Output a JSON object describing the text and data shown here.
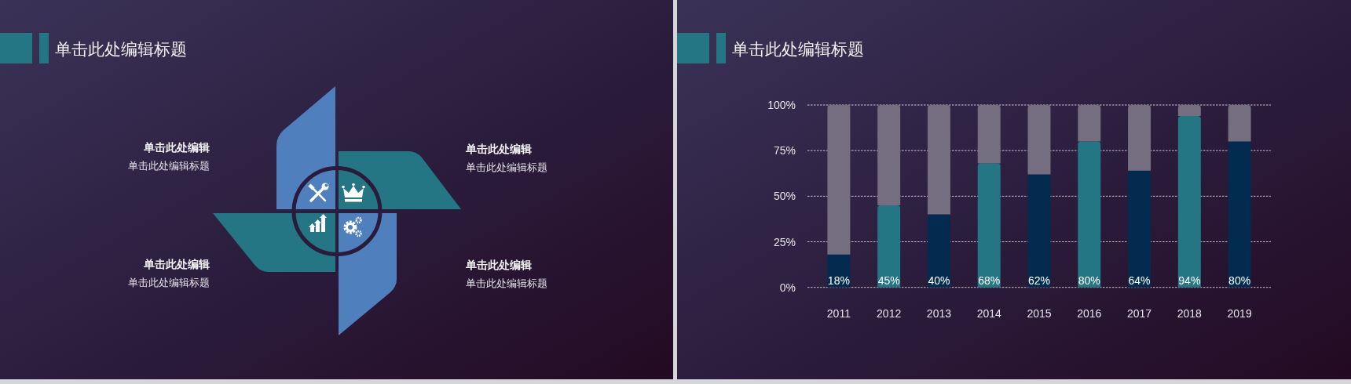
{
  "chart_data": [
    {
      "type": "other",
      "title": "单击此处编辑标题",
      "annotations": [
        "单击此处编辑",
        "单击此处编辑标题",
        "单击此处编辑",
        "单击此处编辑标题",
        "单击此处编辑",
        "单击此处编辑标题",
        "单击此处编辑",
        "单击此处编辑标题"
      ]
    },
    {
      "type": "bar",
      "title": "单击此处编辑标题",
      "categories": [
        "2011",
        "2012",
        "2013",
        "2014",
        "2015",
        "2016",
        "2017",
        "2018",
        "2019"
      ],
      "stacked": true,
      "series": [
        {
          "colors": [
            "#032b4f",
            "#247684",
            "#032b4f",
            "#247684",
            "#032b4f",
            "#247684",
            "#032b4f",
            "#247684",
            "#032b4f"
          ],
          "values": [
            18,
            45,
            40,
            68,
            62,
            80,
            64,
            94,
            80
          ],
          "value_labels": [
            "18%",
            "45%",
            "40%",
            "68%",
            "62%",
            "80%",
            "64%",
            "94%",
            "80%"
          ]
        },
        {
          "color": "#756d80",
          "values": [
            82,
            55,
            60,
            32,
            38,
            20,
            36,
            6,
            20
          ]
        }
      ],
      "ylim": [
        0,
        100
      ],
      "yticks": [
        {
          "value": 0,
          "label": "0%"
        },
        {
          "value": 25,
          "label": "25%"
        },
        {
          "value": 50,
          "label": "50%"
        },
        {
          "value": 75,
          "label": "75%"
        },
        {
          "value": 100,
          "label": "100%"
        }
      ],
      "grid": "y"
    }
  ]
}
